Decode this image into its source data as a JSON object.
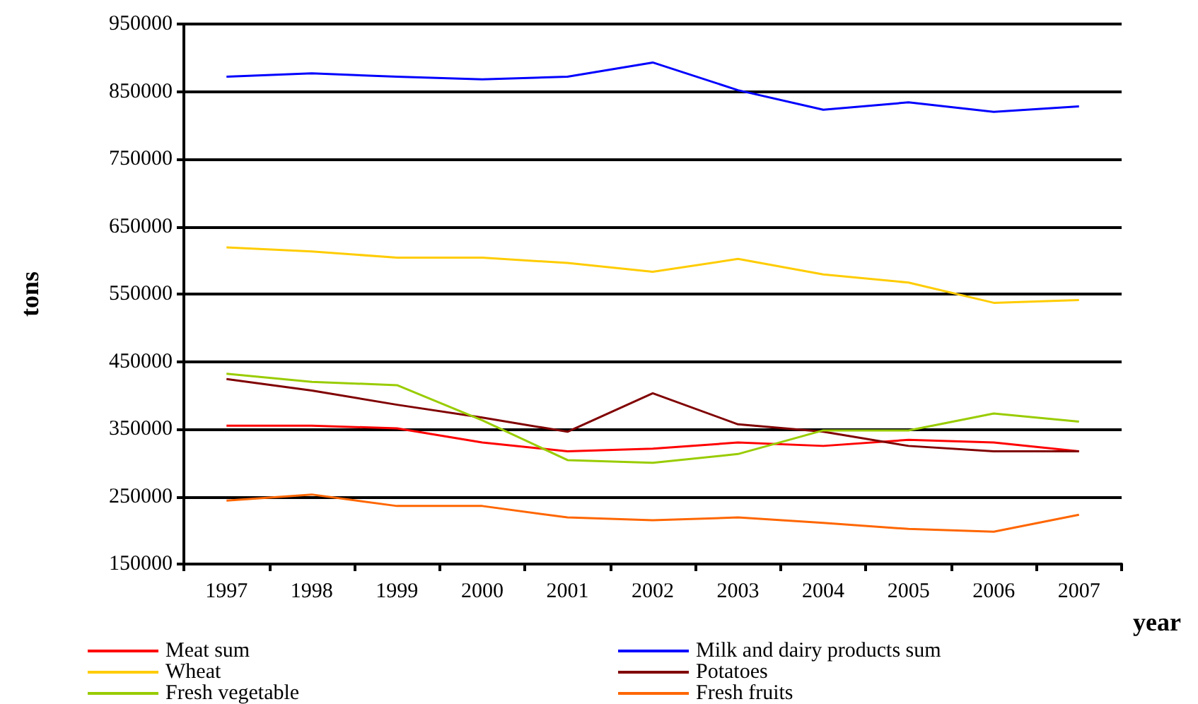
{
  "chart_data": {
    "type": "line",
    "xlabel": "year",
    "ylabel": "tons",
    "categories": [
      "1997",
      "1998",
      "1999",
      "2000",
      "2001",
      "2002",
      "2003",
      "2004",
      "2005",
      "2006",
      "2007"
    ],
    "series": [
      {
        "name": "Meat sum",
        "color": "#ff0000",
        "values": [
          355000,
          355000,
          351000,
          330000,
          317000,
          321000,
          330000,
          325000,
          334000,
          330000,
          317000
        ]
      },
      {
        "name": "Milk and dairy products sum",
        "color": "#0000ff",
        "values": [
          872000,
          877000,
          872000,
          868000,
          872000,
          893000,
          852000,
          823000,
          834000,
          820000,
          828000
        ]
      },
      {
        "name": "Wheat",
        "color": "#ffcc00",
        "values": [
          619000,
          613000,
          604000,
          604000,
          596000,
          583000,
          602000,
          579000,
          567000,
          537000,
          541000
        ]
      },
      {
        "name": "Potatoes",
        "color": "#800000",
        "values": [
          424000,
          407000,
          386000,
          367000,
          346000,
          403000,
          357000,
          346000,
          325000,
          317000,
          317000
        ]
      },
      {
        "name": "Fresh vegetable",
        "color": "#99cc00",
        "values": [
          432000,
          420000,
          415000,
          363000,
          304000,
          300000,
          313000,
          348000,
          348000,
          373000,
          361000
        ]
      },
      {
        "name": "Fresh fruits",
        "color": "#ff6600",
        "values": [
          244000,
          253000,
          236000,
          236000,
          219000,
          215000,
          219000,
          211000,
          202000,
          198000,
          223000
        ]
      }
    ],
    "ylim": [
      150000,
      950000
    ],
    "yticks": [
      150000,
      250000,
      350000,
      450000,
      550000,
      650000,
      750000,
      850000,
      950000
    ],
    "grid": "y",
    "legend": "bottom",
    "marker": "none",
    "line_style": "solid"
  }
}
